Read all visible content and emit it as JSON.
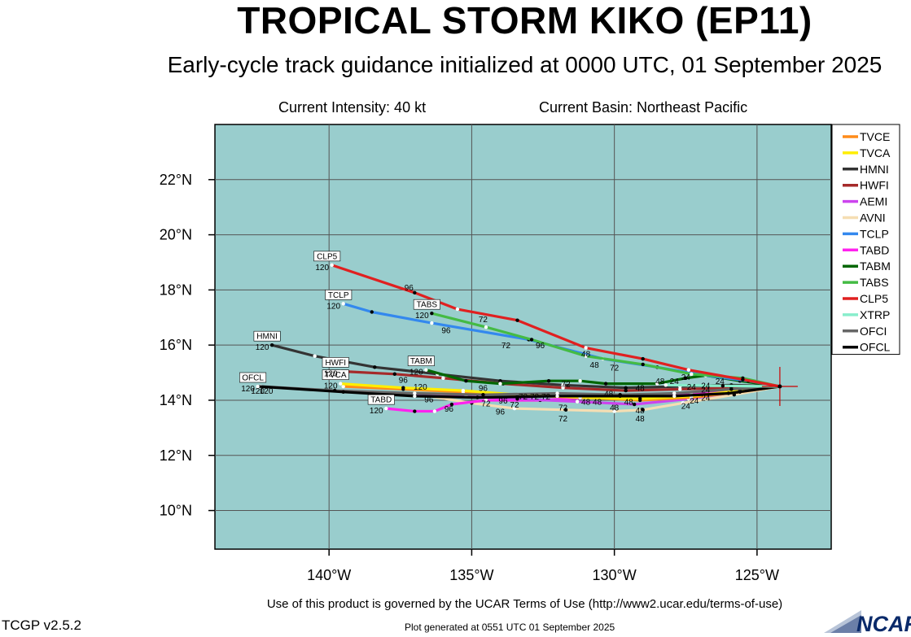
{
  "header": {
    "title": "TROPICAL STORM KIKO (EP11)",
    "subtitle": "Early-cycle track guidance initialized at 0000 UTC, 01 September 2025",
    "intensity": "Current Intensity: 40 kt",
    "basin": "Current Basin: Northeast Pacific"
  },
  "footer": {
    "terms": "Use of this product is governed by the UCAR Terms of Use (http://www2.ucar.edu/terms-of-use)",
    "version": "TCGP v2.5.2",
    "generated": "Plot generated at 0551 UTC   01 September 2025",
    "logo_text": "NCAR"
  },
  "chart_data": {
    "type": "line",
    "xlim": [
      -144,
      -122.4
    ],
    "ylim": [
      8.6,
      24
    ],
    "x_ticks": [
      -140,
      -135,
      -130,
      -125
    ],
    "x_tick_labels": [
      "140°W",
      "135°W",
      "130°W",
      "125°W"
    ],
    "y_ticks": [
      10,
      12,
      14,
      16,
      18,
      20,
      22
    ],
    "y_tick_labels": [
      "10°N",
      "12°N",
      "14°N",
      "16°N",
      "18°N",
      "20°N",
      "22°N"
    ],
    "grid": true,
    "legend_position": "right",
    "storm_position": {
      "lon": -124.2,
      "lat": 14.5
    },
    "series": [
      {
        "name": "TVCE",
        "color": "#ff8c1a",
        "points": [
          [
            -124.2,
            14.5
          ],
          [
            -125.6,
            14.3
          ],
          [
            -127.3,
            14.1
          ],
          [
            -129.1,
            14.0
          ],
          [
            -131.2,
            14.1
          ],
          [
            -133.4,
            14.2
          ],
          [
            -135.3,
            14.3
          ],
          [
            -137.4,
            14.4
          ],
          [
            -139.5,
            14.5
          ]
        ],
        "tag": "TVCE"
      },
      {
        "name": "TVCA",
        "color": "#ffee00",
        "points": [
          [
            -124.2,
            14.5
          ],
          [
            -125.6,
            14.35
          ],
          [
            -127.3,
            14.15
          ],
          [
            -129.1,
            14.05
          ],
          [
            -131.2,
            14.1
          ],
          [
            -133.4,
            14.2
          ],
          [
            -135.3,
            14.35
          ],
          [
            -137.4,
            14.45
          ],
          [
            -139.6,
            14.6
          ]
        ],
        "tag": "TVCA",
        "tag_label": "120"
      },
      {
        "name": "HMNI",
        "color": "#333333",
        "points": [
          [
            -124.2,
            14.5
          ],
          [
            -125.9,
            14.55
          ],
          [
            -127.7,
            14.5
          ],
          [
            -129.6,
            14.45
          ],
          [
            -131.8,
            14.55
          ],
          [
            -134.0,
            14.7
          ],
          [
            -136.2,
            14.95
          ],
          [
            -138.4,
            15.2
          ],
          [
            -140.5,
            15.6
          ],
          [
            -142.0,
            16.0
          ]
        ],
        "tag": "HMNI",
        "tag_label": "120"
      },
      {
        "name": "HWFI",
        "color": "#a52a2a",
        "points": [
          [
            -124.2,
            14.5
          ],
          [
            -125.9,
            14.45
          ],
          [
            -127.7,
            14.4
          ],
          [
            -129.6,
            14.35
          ],
          [
            -131.8,
            14.45
          ],
          [
            -133.9,
            14.6
          ],
          [
            -136.0,
            14.8
          ],
          [
            -137.7,
            14.95
          ],
          [
            -139.6,
            15.05
          ]
        ],
        "tag": "HWFI",
        "tag_label": "120"
      },
      {
        "name": "AEMI",
        "color": "#cc44ee",
        "points": [
          [
            -124.2,
            14.5
          ],
          [
            -125.7,
            14.3
          ],
          [
            -127.4,
            14.05
          ],
          [
            -129.3,
            13.85
          ],
          [
            -131.3,
            13.95
          ],
          [
            -133.4,
            14.05
          ],
          [
            -135.2,
            14.15
          ],
          [
            -137.0,
            14.2
          ]
        ],
        "tag": "AEMI"
      },
      {
        "name": "AVNI",
        "color": "#f5deb3",
        "points": [
          [
            -124.2,
            14.5
          ],
          [
            -125.8,
            14.2
          ],
          [
            -127.6,
            13.9
          ],
          [
            -129.0,
            13.65
          ],
          [
            -130.0,
            13.6
          ],
          [
            -131.7,
            13.65
          ],
          [
            -133.5,
            13.7
          ],
          [
            -135.0,
            13.9
          ],
          [
            -136.8,
            14.2
          ]
        ],
        "tag": "AVNI"
      },
      {
        "name": "TCLP",
        "color": "#3388ee",
        "points": [
          [
            -124.2,
            14.5
          ],
          [
            -125.3,
            14.7
          ],
          [
            -126.8,
            14.9
          ],
          [
            -128.5,
            15.2
          ],
          [
            -130.4,
            15.5
          ],
          [
            -133.0,
            16.2
          ],
          [
            -136.4,
            16.8
          ],
          [
            -138.5,
            17.2
          ],
          [
            -139.5,
            17.5
          ]
        ],
        "tag": "TCLP",
        "tag_label": "120"
      },
      {
        "name": "TABD",
        "color": "#ff22ee",
        "points": [
          [
            -124.2,
            14.5
          ],
          [
            -125.7,
            14.35
          ],
          [
            -127.3,
            14.2
          ],
          [
            -129.1,
            14.1
          ],
          [
            -130.8,
            14.1
          ],
          [
            -132.6,
            14.0
          ],
          [
            -134.5,
            14.0
          ],
          [
            -135.7,
            13.85
          ],
          [
            -136.3,
            13.6
          ],
          [
            -137.0,
            13.6
          ],
          [
            -138.0,
            13.7
          ]
        ],
        "tag": "TABD",
        "tag_label": "120"
      },
      {
        "name": "TABM",
        "color": "#006600",
        "points": [
          [
            -124.2,
            14.5
          ],
          [
            -125.6,
            14.7
          ],
          [
            -126.8,
            14.9
          ],
          [
            -127.5,
            14.8
          ],
          [
            -128.5,
            14.6
          ],
          [
            -130.3,
            14.6
          ],
          [
            -131.2,
            14.7
          ],
          [
            -132.3,
            14.7
          ],
          [
            -134.0,
            14.6
          ],
          [
            -135.2,
            14.7
          ],
          [
            -136.6,
            15.1
          ]
        ],
        "tag": "TABM",
        "tag_label": "120"
      },
      {
        "name": "TABS",
        "color": "#44bb44",
        "points": [
          [
            -124.2,
            14.5
          ],
          [
            -125.5,
            14.8
          ],
          [
            -127.3,
            14.95
          ],
          [
            -129.0,
            15.3
          ],
          [
            -131.0,
            15.6
          ],
          [
            -132.9,
            16.2
          ],
          [
            -134.5,
            16.65
          ],
          [
            -136.4,
            17.15
          ]
        ],
        "tag": "TABS",
        "tag_label": "120"
      },
      {
        "name": "CLP5",
        "color": "#e02020",
        "points": [
          [
            -124.2,
            14.5
          ],
          [
            -125.5,
            14.75
          ],
          [
            -127.4,
            15.1
          ],
          [
            -129.0,
            15.5
          ],
          [
            -131.0,
            15.9
          ],
          [
            -133.4,
            16.9
          ],
          [
            -135.5,
            17.3
          ],
          [
            -137.0,
            17.9
          ],
          [
            -139.9,
            18.9
          ]
        ],
        "tag": "CLP5",
        "tag_label": "120"
      },
      {
        "name": "XTRP",
        "color": "#88eecc",
        "points": [
          [
            -124.2,
            14.5
          ],
          [
            -126.2,
            14.52
          ],
          [
            -128.2,
            14.55
          ]
        ],
        "tag": "XTRP"
      },
      {
        "name": "OFCI",
        "color": "#666666",
        "points": [
          [
            -124.2,
            14.5
          ],
          [
            -125.9,
            14.4
          ],
          [
            -127.9,
            14.25
          ],
          [
            -129.8,
            14.2
          ],
          [
            -132.0,
            14.25
          ],
          [
            -134.6,
            14.2
          ],
          [
            -137.0,
            14.25
          ],
          [
            -139.8,
            14.35
          ],
          [
            -142.4,
            14.5
          ]
        ],
        "tag": "OFCI"
      },
      {
        "name": "OFCL",
        "color": "#000000",
        "points": [
          [
            -124.2,
            14.5
          ],
          [
            -126.0,
            14.25
          ],
          [
            -127.9,
            14.15
          ],
          [
            -129.8,
            14.15
          ],
          [
            -132.0,
            14.15
          ],
          [
            -134.8,
            14.1
          ],
          [
            -137.0,
            14.15
          ],
          [
            -139.5,
            14.3
          ],
          [
            -142.5,
            14.5
          ]
        ],
        "tag": "OFCL",
        "tag_label": "120"
      }
    ],
    "hour_labels": [
      {
        "text": "96",
        "lon": -137.2,
        "lat": 18.1
      },
      {
        "text": "72",
        "lon": -134.6,
        "lat": 16.95
      },
      {
        "text": "96",
        "lon": -135.9,
        "lat": 16.55
      },
      {
        "text": "72",
        "lon": -133.8,
        "lat": 16.0
      },
      {
        "text": "96",
        "lon": -132.6,
        "lat": 16.0
      },
      {
        "text": "48",
        "lon": -131.0,
        "lat": 15.7
      },
      {
        "text": "48",
        "lon": -130.7,
        "lat": 15.3
      },
      {
        "text": "72",
        "lon": -130.0,
        "lat": 15.2
      },
      {
        "text": "24",
        "lon": -127.5,
        "lat": 14.85
      },
      {
        "text": "48",
        "lon": -128.4,
        "lat": 14.7
      },
      {
        "text": "24",
        "lon": -127.9,
        "lat": 14.7
      },
      {
        "text": "24",
        "lon": -126.3,
        "lat": 14.7
      },
      {
        "text": "24",
        "lon": -127.3,
        "lat": 14.5
      },
      {
        "text": "24",
        "lon": -126.8,
        "lat": 14.55
      },
      {
        "text": "24",
        "lon": -126.8,
        "lat": 14.4
      },
      {
        "text": "72",
        "lon": -131.7,
        "lat": 14.6
      },
      {
        "text": "48",
        "lon": -129.1,
        "lat": 14.45
      },
      {
        "text": "48",
        "lon": -130.2,
        "lat": 14.25
      },
      {
        "text": "96",
        "lon": -134.6,
        "lat": 14.45
      },
      {
        "text": "96",
        "lon": -137.4,
        "lat": 14.75
      },
      {
        "text": "96",
        "lon": -133.9,
        "lat": 14.0
      },
      {
        "text": "72",
        "lon": -133.2,
        "lat": 14.15
      },
      {
        "text": "72",
        "lon": -132.8,
        "lat": 14.15
      },
      {
        "text": "72",
        "lon": -132.4,
        "lat": 14.15
      },
      {
        "text": "72",
        "lon": -134.5,
        "lat": 13.9
      },
      {
        "text": "72",
        "lon": -133.5,
        "lat": 13.85
      },
      {
        "text": "48",
        "lon": -131.0,
        "lat": 13.95
      },
      {
        "text": "48",
        "lon": -130.6,
        "lat": 13.95
      },
      {
        "text": "48",
        "lon": -130.0,
        "lat": 13.75
      },
      {
        "text": "48",
        "lon": -129.5,
        "lat": 13.95
      },
      {
        "text": "48",
        "lon": -129.1,
        "lat": 13.65
      },
      {
        "text": "48",
        "lon": -129.1,
        "lat": 13.35
      },
      {
        "text": "72",
        "lon": -131.8,
        "lat": 13.75
      },
      {
        "text": "72",
        "lon": -131.8,
        "lat": 13.35
      },
      {
        "text": "96",
        "lon": -134.0,
        "lat": 13.6
      },
      {
        "text": "96",
        "lon": -135.8,
        "lat": 13.7
      },
      {
        "text": "96",
        "lon": -136.5,
        "lat": 14.05
      },
      {
        "text": "96",
        "lon": -138.4,
        "lat": 14.0
      },
      {
        "text": "96",
        "lon": -138.1,
        "lat": 13.95
      },
      {
        "text": "24",
        "lon": -127.2,
        "lat": 14.0
      },
      {
        "text": "24",
        "lon": -126.8,
        "lat": 14.1
      },
      {
        "text": "24",
        "lon": -127.5,
        "lat": 13.8
      },
      {
        "text": "120",
        "lon": -136.8,
        "lat": 14.5
      },
      {
        "text": "120",
        "lon": -142.5,
        "lat": 14.35
      },
      {
        "text": "120",
        "lon": -142.2,
        "lat": 14.35
      }
    ]
  }
}
